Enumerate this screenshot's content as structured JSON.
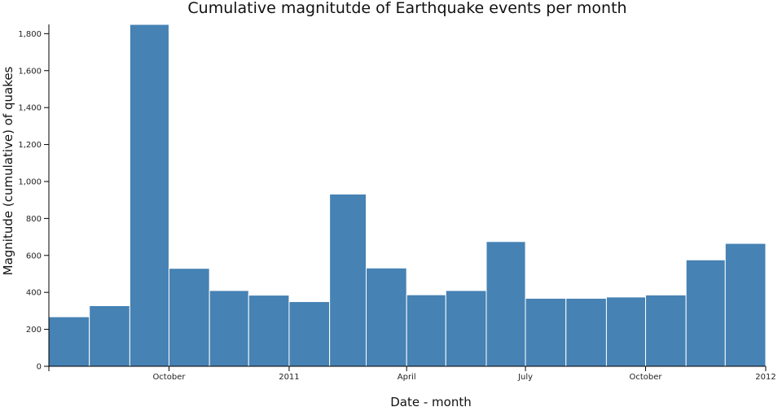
{
  "chart_data": {
    "type": "bar",
    "title": "Cumulative magnitutde of Earthquake events per month",
    "xlabel": "Date - month",
    "ylabel": "Magnitude (cumulative) of quakes",
    "ylim": [
      0,
      1850
    ],
    "yticks": [
      0,
      200,
      400,
      600,
      800,
      1000,
      1200,
      1400,
      1600,
      1800
    ],
    "ytick_labels": [
      "0",
      "200",
      "400",
      "600",
      "800",
      "1,000",
      "1,200",
      "1,400",
      "1,600",
      "1,800"
    ],
    "xlim": [
      "2010-07-01",
      "2012-01-01"
    ],
    "xticks": [
      {
        "date": "2010-10-01",
        "label": "October"
      },
      {
        "date": "2011-01-01",
        "label": "2011"
      },
      {
        "date": "2011-04-01",
        "label": "April"
      },
      {
        "date": "2011-07-01",
        "label": "July"
      },
      {
        "date": "2011-10-01",
        "label": "October"
      },
      {
        "date": "2012-01-01",
        "label": "2012"
      }
    ],
    "categories": [
      "2010-07",
      "2010-08",
      "2010-09",
      "2010-10",
      "2010-11",
      "2010-12",
      "2011-01",
      "2011-02",
      "2011-03",
      "2011-04",
      "2011-05",
      "2011-06",
      "2011-07",
      "2011-08",
      "2011-09",
      "2011-10",
      "2011-11",
      "2011-12"
    ],
    "values": [
      268,
      328,
      1850,
      530,
      410,
      385,
      350,
      932,
      532,
      387,
      410,
      675,
      368,
      368,
      375,
      386,
      576,
      665
    ],
    "colors": {
      "bar": "#4682b4",
      "bar_border": "#ffffff"
    }
  }
}
